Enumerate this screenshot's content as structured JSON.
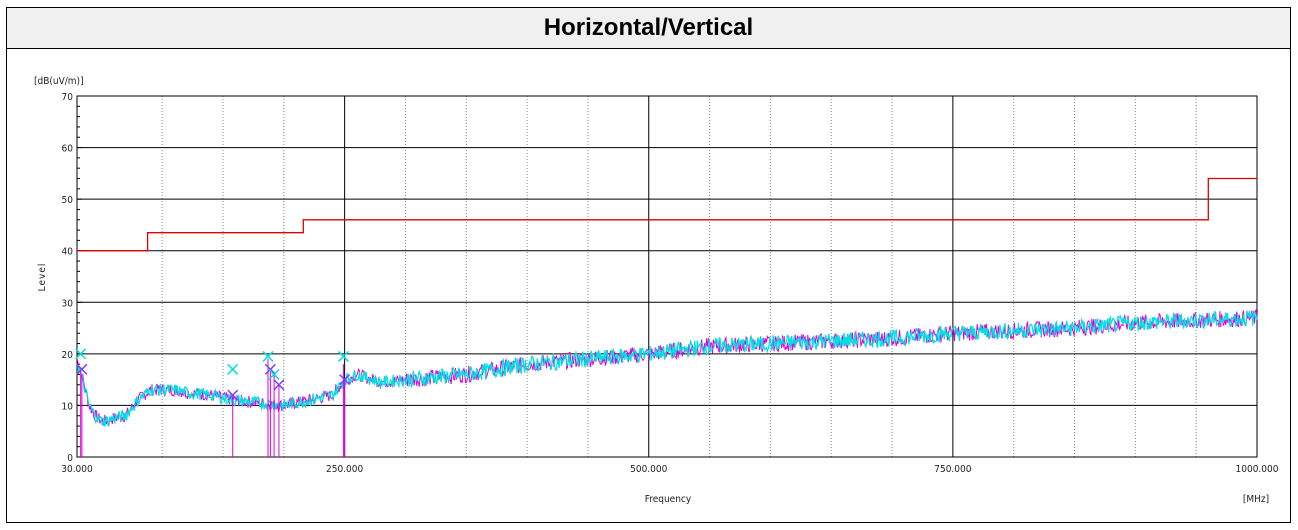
{
  "chart_data": {
    "type": "line",
    "title": "Horizontal/Vertical",
    "ylabel": "Level",
    "yunit": "[dB(uV/m)]",
    "xlabel": "Frequency",
    "xunit": "[MHz]",
    "xlim": [
      30,
      1000
    ],
    "ylim": [
      0,
      70
    ],
    "xticks": [
      30,
      250,
      500,
      750,
      1000
    ],
    "xtick_labels": [
      "30.000",
      "250.000",
      "500.000",
      "750.000",
      "1000.000"
    ],
    "yticks": [
      0,
      10,
      20,
      30,
      40,
      50,
      60,
      70
    ],
    "ytick_labels": [
      "0",
      "10",
      "20",
      "30",
      "40",
      "50",
      "60",
      "70"
    ],
    "grid": true,
    "limit_line": {
      "color": "#e00000",
      "x": [
        30,
        88,
        88,
        216,
        216,
        960,
        960,
        1000
      ],
      "y": [
        40,
        40,
        43.5,
        43.5,
        46,
        46,
        54,
        54
      ]
    },
    "series": [
      {
        "color": "#e000e0",
        "x": [
          30,
          35,
          40,
          45,
          50,
          55,
          60,
          70,
          80,
          90,
          100,
          110,
          120,
          140,
          160,
          180,
          200,
          220,
          240,
          250,
          260,
          280,
          300,
          350,
          400,
          450,
          500,
          550,
          600,
          650,
          700,
          750,
          800,
          850,
          900,
          950,
          1000
        ],
        "y": [
          19,
          15,
          10,
          8,
          7,
          7,
          7.5,
          8,
          11,
          13,
          13,
          13,
          12.5,
          12,
          11,
          10.5,
          10,
          11,
          12,
          15,
          16,
          14.5,
          15,
          16,
          18,
          19,
          20,
          21.5,
          22,
          22.5,
          23,
          24,
          24.5,
          25,
          26,
          26.5,
          27
        ]
      },
      {
        "color": "#00e0e0",
        "x": [
          30,
          35,
          40,
          45,
          50,
          55,
          60,
          70,
          80,
          90,
          100,
          110,
          120,
          140,
          160,
          180,
          200,
          220,
          240,
          250,
          260,
          280,
          300,
          350,
          400,
          450,
          500,
          550,
          600,
          650,
          700,
          750,
          800,
          850,
          900,
          950,
          1000
        ],
        "y": [
          18.5,
          14.5,
          10,
          8,
          7,
          7,
          7.5,
          8,
          11,
          13,
          13,
          13,
          12.5,
          12,
          11,
          10.5,
          10,
          11,
          12,
          15,
          16,
          14.5,
          15,
          16,
          18,
          19,
          20,
          21.5,
          22,
          22.5,
          23,
          24,
          24.5,
          25,
          26,
          26.5,
          27
        ]
      }
    ],
    "markers": [
      {
        "x": 33,
        "y": 20,
        "symbol": "x",
        "color": "#00e0e0"
      },
      {
        "x": 34,
        "y": 17,
        "symbol": "x",
        "color": "#8040ff"
      },
      {
        "x": 158,
        "y": 17,
        "symbol": "x",
        "color": "#00e0e0"
      },
      {
        "x": 158,
        "y": 12,
        "symbol": "x",
        "color": "#8040ff"
      },
      {
        "x": 187,
        "y": 19.5,
        "symbol": "x",
        "color": "#00e0e0"
      },
      {
        "x": 189,
        "y": 17,
        "symbol": "x",
        "color": "#8040ff"
      },
      {
        "x": 192,
        "y": 16,
        "symbol": "x",
        "color": "#00e0e0"
      },
      {
        "x": 196,
        "y": 14,
        "symbol": "x",
        "color": "#8040ff"
      },
      {
        "x": 249,
        "y": 19.5,
        "symbol": "x",
        "color": "#00e0e0"
      },
      {
        "x": 250,
        "y": 15,
        "symbol": "x",
        "color": "#8040ff"
      }
    ],
    "peak_lines": {
      "color": "#e000e0",
      "x": [
        33,
        34,
        158,
        187,
        189,
        192,
        196,
        249,
        250
      ],
      "y": [
        17,
        16,
        12,
        19,
        17,
        16,
        14,
        18,
        15
      ]
    }
  }
}
